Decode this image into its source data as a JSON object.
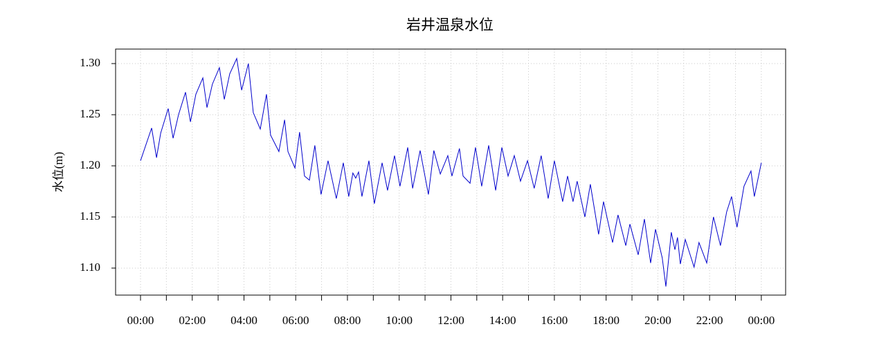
{
  "chart_data": {
    "type": "line",
    "title": "岩井温泉水位",
    "y_label": "水位(m)",
    "x": [
      0,
      0.43,
      0.62,
      0.78,
      1.07,
      1.26,
      1.47,
      1.74,
      1.93,
      2.14,
      2.41,
      2.57,
      2.78,
      3.05,
      3.24,
      3.45,
      3.72,
      3.91,
      4.17,
      4.36,
      4.63,
      4.87,
      5.03,
      5.35,
      5.57,
      5.7,
      5.97,
      6.15,
      6.34,
      6.53,
      6.74,
      6.98,
      7.25,
      7.57,
      7.84,
      8.05,
      8.21,
      8.32,
      8.43,
      8.56,
      8.83,
      9.04,
      9.34,
      9.55,
      9.82,
      10.03,
      10.33,
      10.52,
      10.81,
      11.13,
      11.34,
      11.59,
      11.88,
      12.04,
      12.33,
      12.47,
      12.74,
      12.95,
      13.19,
      13.46,
      13.73,
      13.97,
      14.21,
      14.45,
      14.69,
      14.96,
      15.22,
      15.49,
      15.76,
      16.0,
      16.32,
      16.51,
      16.72,
      16.88,
      17.18,
      17.39,
      17.71,
      17.9,
      18.25,
      18.46,
      18.76,
      18.92,
      19.24,
      19.48,
      19.72,
      19.91,
      20.17,
      20.31,
      20.52,
      20.66,
      20.76,
      20.87,
      21.06,
      21.4,
      21.59,
      21.89,
      22.15,
      22.42,
      22.66,
      22.85,
      23.06,
      23.33,
      23.6,
      23.73,
      24.0
    ],
    "series": [
      {
        "name": "水位",
        "color": "#0000cc",
        "values": [
          1.205,
          1.237,
          1.208,
          1.232,
          1.256,
          1.227,
          1.25,
          1.272,
          1.243,
          1.27,
          1.286,
          1.257,
          1.28,
          1.296,
          1.265,
          1.29,
          1.305,
          1.274,
          1.3,
          1.252,
          1.236,
          1.27,
          1.23,
          1.214,
          1.245,
          1.214,
          1.198,
          1.233,
          1.19,
          1.186,
          1.22,
          1.172,
          1.205,
          1.168,
          1.203,
          1.17,
          1.193,
          1.188,
          1.194,
          1.17,
          1.205,
          1.163,
          1.203,
          1.176,
          1.21,
          1.18,
          1.218,
          1.178,
          1.215,
          1.172,
          1.215,
          1.192,
          1.21,
          1.19,
          1.217,
          1.19,
          1.183,
          1.218,
          1.18,
          1.22,
          1.176,
          1.218,
          1.19,
          1.21,
          1.185,
          1.205,
          1.178,
          1.21,
          1.168,
          1.205,
          1.165,
          1.19,
          1.165,
          1.185,
          1.15,
          1.182,
          1.133,
          1.165,
          1.125,
          1.152,
          1.122,
          1.143,
          1.113,
          1.148,
          1.105,
          1.138,
          1.11,
          1.082,
          1.135,
          1.118,
          1.13,
          1.104,
          1.128,
          1.101,
          1.125,
          1.105,
          1.15,
          1.122,
          1.155,
          1.17,
          1.14,
          1.18,
          1.195,
          1.17,
          1.203
        ]
      }
    ],
    "xlim": [
      -0.963,
      24.94
    ],
    "xticks": [
      {
        "value": 0,
        "label": "00:00"
      },
      {
        "value": 2,
        "label": "02:00"
      },
      {
        "value": 4,
        "label": "04:00"
      },
      {
        "value": 6,
        "label": "06:00"
      },
      {
        "value": 8,
        "label": "08:00"
      },
      {
        "value": 10,
        "label": "10:00"
      },
      {
        "value": 12,
        "label": "12:00"
      },
      {
        "value": 14,
        "label": "14:00"
      },
      {
        "value": 16,
        "label": "16:00"
      },
      {
        "value": 18,
        "label": "18:00"
      },
      {
        "value": 20,
        "label": "20:00"
      },
      {
        "value": 22,
        "label": "22:00"
      },
      {
        "value": 24,
        "label": "00:00"
      }
    ],
    "xminor_ticks": [
      1,
      3,
      5,
      7,
      9,
      11,
      13,
      15,
      17,
      19,
      21,
      23
    ],
    "ylim": [
      1.0736,
      1.3142
    ],
    "yticks": [
      {
        "value": 1.1,
        "label": "1.10"
      },
      1.15,
      {
        "value": 1.2,
        "label": "1.20"
      },
      1.25,
      {
        "value": 1.3,
        "label": "1.30"
      }
    ],
    "grid": true
  }
}
